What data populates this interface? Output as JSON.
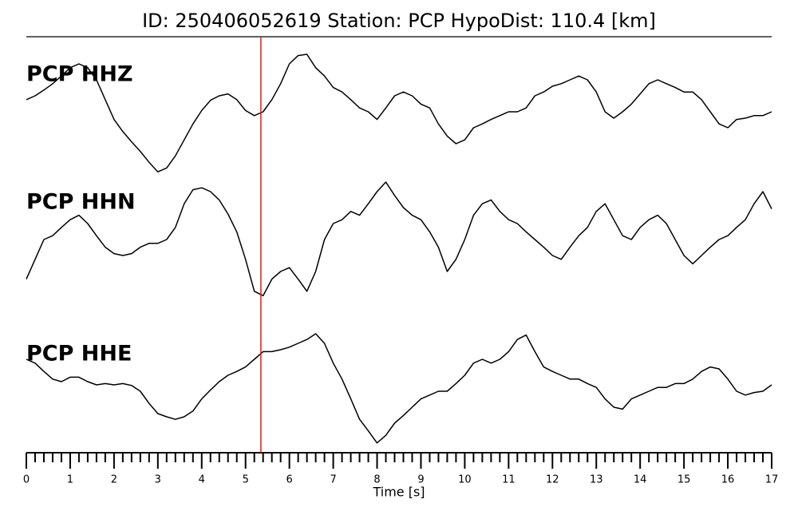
{
  "chart_data": {
    "type": "line",
    "title": "ID: 250406052619   Station: PCP   HypoDist:   110.4 [km]",
    "xlabel": "Time [s]",
    "xlim": [
      0,
      17
    ],
    "xticks": [
      0,
      1,
      2,
      3,
      4,
      5,
      6,
      7,
      8,
      9,
      10,
      11,
      12,
      13,
      14,
      15,
      16,
      17
    ],
    "xminorticks": [
      0.2,
      0.4,
      0.6,
      0.8,
      1.2,
      1.4,
      1.6,
      1.8,
      2.2,
      2.4,
      2.6,
      2.8,
      3.2,
      3.4,
      3.6,
      3.8,
      4.2,
      4.4,
      4.6,
      4.8,
      5.2,
      5.4,
      5.6,
      5.8,
      6.2,
      6.4,
      6.6,
      6.8,
      7.2,
      7.4,
      7.6,
      7.8,
      8.2,
      8.4,
      8.6,
      8.8,
      9.2,
      9.4,
      9.6,
      9.8,
      10.2,
      10.4,
      10.6,
      10.8,
      11.2,
      11.4,
      11.6,
      11.8,
      12.2,
      12.4,
      12.6,
      12.8,
      13.2,
      13.4,
      13.6,
      13.8,
      14.2,
      14.4,
      14.6,
      14.8,
      15.2,
      15.4,
      15.6,
      15.8,
      16.2,
      16.4,
      16.6,
      16.8
    ],
    "ylim": [
      -1,
      1
    ],
    "marker": {
      "x": 5.35,
      "color": "#e41a1c"
    },
    "label_color": "#4e9a06",
    "x": [
      0,
      0.2,
      0.4,
      0.6,
      0.8,
      1,
      1.2,
      1.4,
      1.6,
      1.8,
      2,
      2.2,
      2.4,
      2.6,
      2.8,
      3,
      3.2,
      3.4,
      3.6,
      3.8,
      4,
      4.2,
      4.4,
      4.6,
      4.8,
      5,
      5.2,
      5.4,
      5.6,
      5.8,
      6,
      6.2,
      6.4,
      6.6,
      6.8,
      7,
      7.2,
      7.4,
      7.6,
      7.8,
      8,
      8.2,
      8.4,
      8.6,
      8.8,
      9,
      9.2,
      9.4,
      9.6,
      9.8,
      10,
      10.2,
      10.4,
      10.6,
      10.8,
      11,
      11.2,
      11.4,
      11.6,
      11.8,
      12,
      12.2,
      12.4,
      12.6,
      12.8,
      13,
      13.2,
      13.4,
      13.6,
      13.8,
      14,
      14.2,
      14.4,
      14.6,
      14.8,
      15,
      15.2,
      15.4,
      15.6,
      15.8,
      16,
      16.2,
      16.4,
      16.6,
      16.8,
      17
    ],
    "series": [
      {
        "name": "PCP HHZ",
        "color": "#000000",
        "values": [
          0.19,
          0.25,
          0.34,
          0.44,
          0.56,
          0.69,
          0.75,
          0.69,
          0.5,
          0.19,
          -0.12,
          -0.31,
          -0.47,
          -0.62,
          -0.79,
          -0.94,
          -0.88,
          -0.69,
          -0.44,
          -0.19,
          0.02,
          0.18,
          0.25,
          0.28,
          0.19,
          0.02,
          -0.06,
          0,
          0.19,
          0.44,
          0.75,
          0.88,
          0.9,
          0.69,
          0.56,
          0.38,
          0.31,
          0.19,
          0.06,
          0,
          -0.12,
          0.06,
          0.25,
          0.31,
          0.25,
          0.12,
          0.06,
          -0.19,
          -0.38,
          -0.5,
          -0.44,
          -0.25,
          -0.19,
          -0.12,
          -0.06,
          0,
          0,
          0.06,
          0.25,
          0.31,
          0.4,
          0.44,
          0.5,
          0.56,
          0.5,
          0.31,
          0,
          -0.1,
          0,
          0.12,
          0.28,
          0.44,
          0.5,
          0.44,
          0.38,
          0.31,
          0.31,
          0.19,
          0,
          -0.19,
          -0.25,
          -0.12,
          -0.1,
          -0.06,
          -0.06,
          0
        ]
      },
      {
        "name": "PCP HHN",
        "color": "#000000",
        "values": [
          -0.62,
          -0.31,
          0,
          0.06,
          0.19,
          0.31,
          0.38,
          0.25,
          0.06,
          -0.12,
          -0.22,
          -0.25,
          -0.22,
          -0.12,
          -0.06,
          -0.06,
          0,
          0.19,
          0.56,
          0.78,
          0.81,
          0.75,
          0.62,
          0.4,
          0.12,
          -0.31,
          -0.81,
          -0.88,
          -0.62,
          -0.5,
          -0.44,
          -0.62,
          -0.81,
          -0.5,
          0,
          0.25,
          0.31,
          0.44,
          0.38,
          0.56,
          0.75,
          0.9,
          0.69,
          0.5,
          0.38,
          0.31,
          0.12,
          -0.12,
          -0.5,
          -0.31,
          0,
          0.38,
          0.56,
          0.62,
          0.44,
          0.31,
          0.25,
          0.12,
          0,
          -0.12,
          -0.25,
          -0.31,
          -0.12,
          0.06,
          0.19,
          0.44,
          0.56,
          0.31,
          0.06,
          0,
          0.19,
          0.31,
          0.38,
          0.25,
          0,
          -0.25,
          -0.38,
          -0.25,
          -0.12,
          0,
          0.06,
          0.19,
          0.31,
          0.56,
          0.75,
          0.48
        ]
      },
      {
        "name": "PCP HHE",
        "color": "#000000",
        "values": [
          0.5,
          0.44,
          0.31,
          0.19,
          0.15,
          0.22,
          0.22,
          0.15,
          0.1,
          0.12,
          0.1,
          0.12,
          0.09,
          0,
          -0.19,
          -0.35,
          -0.4,
          -0.44,
          -0.4,
          -0.31,
          -0.12,
          0.02,
          0.15,
          0.25,
          0.31,
          0.38,
          0.5,
          0.62,
          0.62,
          0.65,
          0.69,
          0.75,
          0.81,
          0.9,
          0.75,
          0.44,
          0.19,
          -0.12,
          -0.44,
          -0.62,
          -0.81,
          -0.69,
          -0.5,
          -0.38,
          -0.25,
          -0.12,
          -0.06,
          0,
          0,
          0.12,
          0.25,
          0.44,
          0.5,
          0.44,
          0.5,
          0.62,
          0.81,
          0.88,
          0.62,
          0.38,
          0.31,
          0.25,
          0.19,
          0.19,
          0.12,
          0.06,
          -0.12,
          -0.25,
          -0.28,
          -0.12,
          -0.06,
          0,
          0.06,
          0.06,
          0.12,
          0.12,
          0.19,
          0.31,
          0.38,
          0.35,
          0.19,
          0,
          -0.06,
          -0.02,
          0,
          0.1
        ]
      }
    ]
  }
}
